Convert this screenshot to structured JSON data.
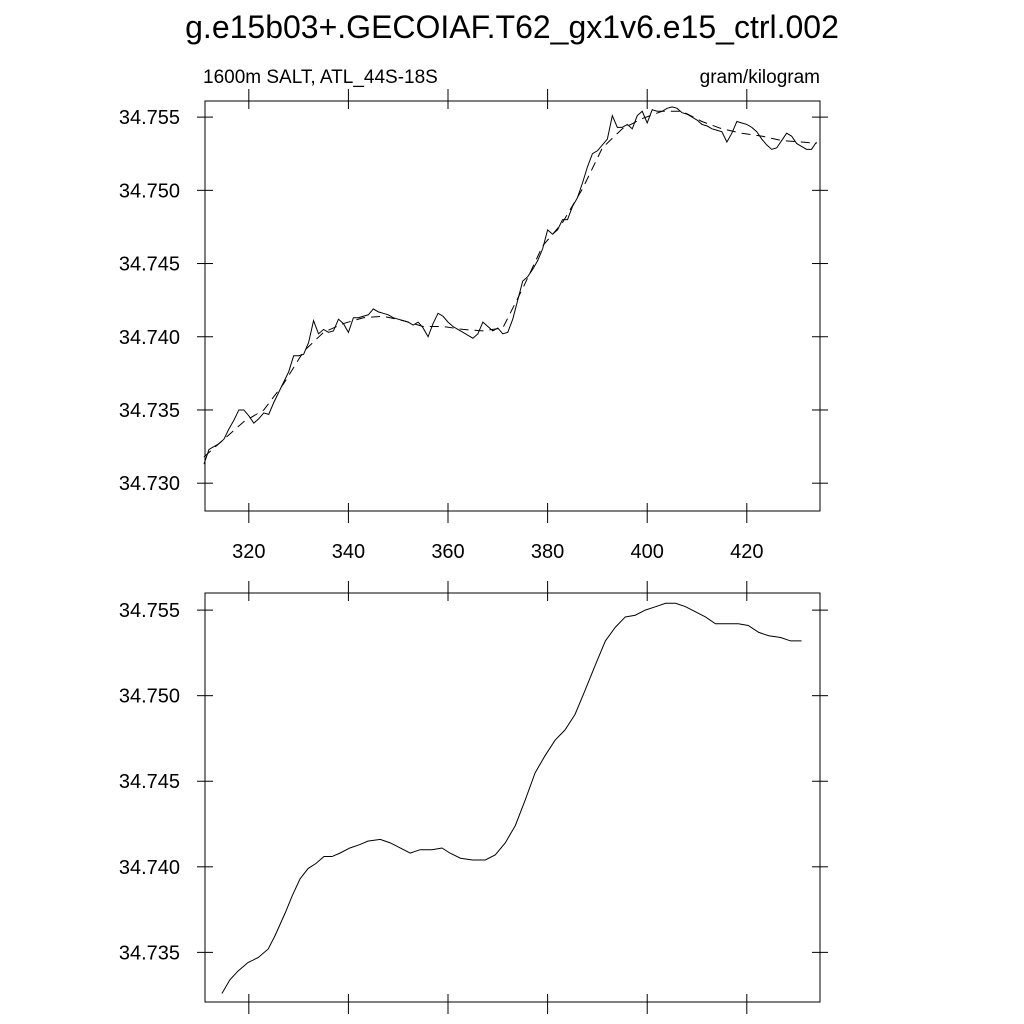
{
  "title": "g.e15b03+.GECOIAF.T62_gx1v6.e15_ctrl.002",
  "chart_data": [
    {
      "type": "line",
      "left_label": "1600m SALT, ATL_44S-18S",
      "right_label": "gram/kilogram",
      "xlim": [
        311.2,
        434.7
      ],
      "xticks": [
        320,
        340,
        360,
        380,
        400,
        420
      ],
      "xtick_labels": true,
      "ylim": [
        34.7281,
        34.7561
      ],
      "yticks": [
        {
          "value": 34.73,
          "label": "34.730"
        },
        34.735,
        {
          "value": 34.74,
          "label": "34.740"
        },
        34.745,
        {
          "value": 34.75,
          "label": "34.750"
        },
        34.755
      ],
      "series": [
        {
          "color": "#000000",
          "style": "solid",
          "x": [
            311,
            312,
            313,
            314,
            315,
            316,
            317,
            318,
            319,
            320,
            321,
            322,
            323,
            324,
            325,
            326,
            327,
            328,
            329,
            330,
            331,
            332,
            333,
            334,
            335,
            336,
            337,
            338,
            339,
            340,
            341,
            342,
            343,
            344,
            345,
            346,
            347,
            348,
            349,
            350,
            351,
            352,
            353,
            354,
            355,
            356,
            357,
            358,
            359,
            360,
            361,
            362,
            363,
            364,
            365,
            366,
            367,
            368,
            369,
            370,
            371,
            372,
            373,
            374,
            375,
            376,
            377,
            378,
            379,
            380,
            381,
            382,
            383,
            384,
            385,
            386,
            387,
            388,
            389,
            390,
            391,
            392,
            393,
            394,
            395,
            396,
            397,
            398,
            399,
            400,
            401,
            402,
            403,
            404,
            405,
            406,
            407,
            408,
            409,
            410,
            411,
            412,
            413,
            414,
            415,
            416,
            417,
            418,
            419,
            420,
            421,
            422,
            423,
            424,
            425,
            426,
            427,
            428,
            429,
            430,
            431,
            432,
            433,
            434
          ],
          "values": [
            34.7313,
            34.7323,
            34.7325,
            34.7327,
            34.733,
            34.7337,
            34.7343,
            34.735,
            34.735,
            34.7346,
            34.7341,
            34.7344,
            34.7348,
            34.7347,
            34.7355,
            34.7362,
            34.7369,
            34.7376,
            34.7387,
            34.7387,
            34.7388,
            34.7396,
            34.7411,
            34.7402,
            34.7405,
            34.7403,
            34.7404,
            34.7412,
            34.7409,
            34.7403,
            34.7413,
            34.7413,
            34.7414,
            34.7415,
            34.7419,
            34.7417,
            34.7416,
            34.7415,
            34.7413,
            34.7412,
            34.7411,
            34.741,
            34.7408,
            34.741,
            34.7406,
            34.74,
            34.7409,
            34.7416,
            34.7414,
            34.741,
            34.7407,
            34.7405,
            34.7403,
            34.7401,
            34.7399,
            34.7402,
            34.741,
            34.7407,
            34.7404,
            34.7406,
            34.7402,
            34.7403,
            34.7412,
            34.7425,
            34.7438,
            34.7441,
            34.7446,
            34.7452,
            34.746,
            34.7473,
            34.747,
            34.7473,
            34.748,
            34.748,
            34.7489,
            34.7495,
            34.7505,
            34.7516,
            34.7525,
            34.7527,
            34.7531,
            34.7535,
            34.7551,
            34.7543,
            34.7543,
            34.7545,
            34.7542,
            34.7551,
            34.7554,
            34.7546,
            34.7555,
            34.7554,
            34.7554,
            34.7556,
            34.7557,
            34.7556,
            34.7553,
            34.7552,
            34.755,
            34.7548,
            34.7545,
            34.7544,
            34.7542,
            34.7541,
            34.754,
            34.7533,
            34.7539,
            34.7547,
            34.7546,
            34.7545,
            34.7543,
            34.754,
            34.7535,
            34.7531,
            34.7528,
            34.7529,
            34.7534,
            34.7539,
            34.7537,
            34.7532,
            34.753,
            34.7528,
            34.7528,
            34.7533
          ]
        },
        {
          "color": "#000000",
          "style": "dashed",
          "x": [
            311,
            315,
            319,
            323,
            327,
            331,
            335,
            339,
            343,
            347,
            351,
            355,
            359,
            363,
            367,
            371,
            375,
            379,
            383,
            387,
            391,
            395,
            399,
            403,
            407,
            411,
            415,
            419,
            423,
            427,
            431,
            434
          ],
          "values": [
            34.7318,
            34.733,
            34.7342,
            34.735,
            34.7368,
            34.739,
            34.7403,
            34.7409,
            34.7413,
            34.7414,
            34.7411,
            34.7407,
            34.7407,
            34.7405,
            34.7404,
            34.7406,
            34.7433,
            34.7462,
            34.7478,
            34.7501,
            34.7529,
            34.7542,
            34.7549,
            34.7554,
            34.7554,
            34.7547,
            34.7542,
            34.7539,
            34.7537,
            34.7534,
            34.7533,
            34.7532
          ]
        }
      ]
    },
    {
      "type": "line",
      "xlim": [
        311.2,
        434.7
      ],
      "xticks": [
        320,
        340,
        360,
        380,
        400,
        420
      ],
      "xtick_labels": false,
      "ylim": [
        34.7321,
        34.756
      ],
      "yticks": [
        34.735,
        {
          "value": 34.74,
          "label": "34.740"
        },
        34.745,
        {
          "value": 34.75,
          "label": "34.750"
        },
        34.755
      ],
      "series": [
        {
          "color": "#000000",
          "style": "solid",
          "x": [
            314.6,
            316.2,
            317.8,
            319.8,
            321.9,
            323.9,
            325.3,
            327.3,
            328.7,
            330.3,
            331.9,
            333.5,
            335.1,
            336.7,
            338.3,
            340.3,
            342.3,
            343.9,
            346.4,
            348.4,
            350.4,
            352.4,
            354.4,
            356.8,
            358.8,
            360.4,
            362.5,
            364.9,
            367.5,
            369.5,
            371.5,
            373.5,
            375.5,
            377.5,
            379.5,
            381.5,
            383.5,
            385.5,
            387.5,
            389.6,
            391.6,
            393.6,
            395.6,
            397.6,
            399.6,
            401.7,
            403.7,
            405.7,
            407.7,
            409.7,
            411.7,
            413.7,
            415.7,
            418.3,
            420.3,
            422.4,
            424.4,
            426.8,
            428.8,
            431.0
          ],
          "values": [
            34.7326,
            34.7334,
            34.7339,
            34.7344,
            34.7347,
            34.7352,
            34.736,
            34.7373,
            34.7383,
            34.7393,
            34.7399,
            34.7402,
            34.7406,
            34.7406,
            34.7408,
            34.7411,
            34.7413,
            34.7415,
            34.7416,
            34.7414,
            34.7411,
            34.7408,
            34.741,
            34.741,
            34.7411,
            34.7408,
            34.7405,
            34.7404,
            34.7404,
            34.7407,
            34.7414,
            34.7424,
            34.7439,
            34.7455,
            34.7465,
            34.7474,
            34.748,
            34.7489,
            34.7503,
            34.7518,
            34.7532,
            34.754,
            34.7546,
            34.7547,
            34.755,
            34.7552,
            34.7554,
            34.7554,
            34.7552,
            34.7549,
            34.7546,
            34.7542,
            34.7542,
            34.7542,
            34.7541,
            34.7537,
            34.7535,
            34.7534,
            34.7532,
            34.7532
          ]
        }
      ]
    }
  ]
}
